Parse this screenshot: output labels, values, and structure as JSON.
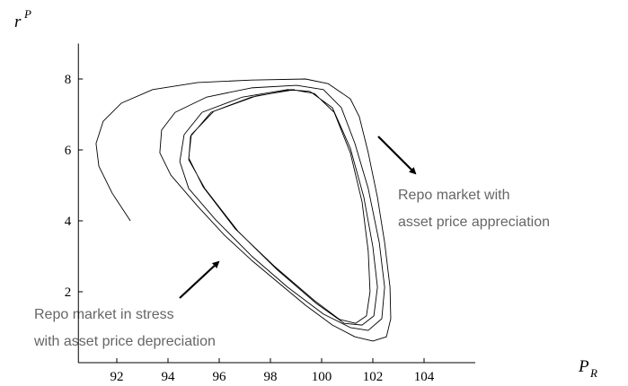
{
  "chart_data": {
    "type": "line",
    "xlabel": "P",
    "xlabel_sub": "R",
    "ylabel": "r",
    "ylabel_sup": "P",
    "annotations": [
      "Repo market with",
      "asset price appreciation",
      "Repo market in stress",
      "with asset price depreciation"
    ],
    "xlim": [
      90.5,
      106
    ],
    "ylim": [
      0,
      9
    ],
    "xticks": [
      92,
      94,
      96,
      98,
      100,
      102,
      104
    ],
    "yticks": [
      2,
      4,
      6,
      8
    ],
    "grid": false,
    "series": [
      {
        "color": "#000000",
        "x": [
          92.53,
          91.82,
          91.3,
          91.19,
          91.47,
          92.18,
          93.4,
          95.16,
          97.26,
          99.37,
          100.25,
          101.12,
          101.47,
          101.82,
          102.18,
          102.46,
          102.67,
          102.7,
          102.53,
          102.0,
          101.3,
          100.42,
          99.37,
          98.32,
          97.26,
          96.21,
          95.16,
          94.11,
          93.68,
          93.75,
          94.28,
          95.51,
          97.26,
          99.02,
          100.07,
          100.77,
          101.3,
          101.82,
          102.25,
          102.46,
          102.35,
          101.82,
          101.12,
          100.07,
          98.67,
          97.26,
          95.86,
          94.81,
          94.46,
          94.63,
          95.33,
          96.91,
          98.67,
          99.54,
          100.42,
          101.12,
          101.65,
          102.0,
          102.18,
          102.04,
          101.58,
          100.88,
          99.79,
          98.25,
          96.74,
          95.44,
          94.81,
          94.88,
          95.68,
          97.26,
          98.84,
          99.72,
          100.49,
          101.12,
          101.58,
          101.82,
          101.89,
          101.75,
          101.33,
          100.7,
          99.72,
          98.14,
          96.63,
          95.37,
          94.81,
          94.91,
          95.79,
          97.44,
          98.95
        ],
        "values": [
          4.0,
          4.78,
          5.54,
          6.18,
          6.81,
          7.32,
          7.7,
          7.9,
          7.97,
          8.0,
          7.87,
          7.44,
          6.94,
          5.92,
          4.66,
          3.39,
          2.13,
          1.24,
          0.73,
          0.61,
          0.73,
          1.06,
          1.62,
          2.25,
          2.89,
          3.59,
          4.41,
          5.29,
          5.92,
          6.56,
          7.06,
          7.49,
          7.75,
          7.82,
          7.7,
          7.19,
          6.18,
          4.91,
          3.39,
          2.13,
          1.24,
          0.91,
          0.99,
          1.37,
          2.13,
          3.01,
          4.03,
          4.91,
          5.67,
          6.43,
          7.06,
          7.49,
          7.7,
          7.65,
          7.19,
          6.05,
          4.66,
          3.27,
          2.13,
          1.32,
          1.06,
          1.11,
          1.67,
          2.63,
          3.7,
          4.91,
          5.72,
          6.38,
          7.06,
          7.49,
          7.7,
          7.59,
          7.06,
          5.92,
          4.53,
          3.14,
          2.0,
          1.32,
          1.11,
          1.22,
          1.75,
          2.73,
          3.77,
          4.96,
          5.77,
          6.43,
          7.09,
          7.52,
          7.7
        ]
      }
    ]
  }
}
